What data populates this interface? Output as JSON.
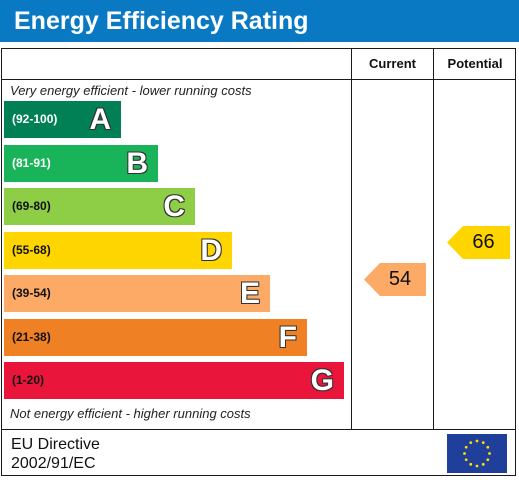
{
  "title": "Energy Efficiency Rating",
  "columns": {
    "current": "Current",
    "potential": "Potential"
  },
  "notes": {
    "top": "Very energy efficient - lower running costs",
    "bottom": "Not energy efficient - higher running costs"
  },
  "footer": {
    "directive_line1": "EU Directive",
    "directive_line2": "2002/91/EC"
  },
  "chart_data": {
    "type": "bar",
    "title": "Energy Efficiency Rating",
    "categories": [
      "A",
      "B",
      "C",
      "D",
      "E",
      "F",
      "G"
    ],
    "bands": [
      {
        "letter": "A",
        "range": "(92-100)",
        "min": 92,
        "max": 100,
        "color": "#008054",
        "range_color": "#ffffff"
      },
      {
        "letter": "B",
        "range": "(81-91)",
        "min": 81,
        "max": 91,
        "color": "#19b459",
        "range_color": "#ffffff"
      },
      {
        "letter": "C",
        "range": "(69-80)",
        "min": 69,
        "max": 80,
        "color": "#8dce46",
        "range_color": "#111111"
      },
      {
        "letter": "D",
        "range": "(55-68)",
        "min": 55,
        "max": 68,
        "color": "#ffd500",
        "range_color": "#111111"
      },
      {
        "letter": "E",
        "range": "(39-54)",
        "min": 39,
        "max": 54,
        "color": "#fcaa65",
        "range_color": "#111111"
      },
      {
        "letter": "F",
        "range": "(21-38)",
        "min": 21,
        "max": 38,
        "color": "#ef8023",
        "range_color": "#111111"
      },
      {
        "letter": "G",
        "range": "(1-20)",
        "min": 1,
        "max": 20,
        "color": "#e9153b",
        "range_color": "#111111"
      }
    ],
    "series": [
      {
        "name": "Current",
        "value": 54,
        "band": "E",
        "color": "#fcaa65"
      },
      {
        "name": "Potential",
        "value": 66,
        "band": "D",
        "color": "#ffd500"
      }
    ]
  }
}
